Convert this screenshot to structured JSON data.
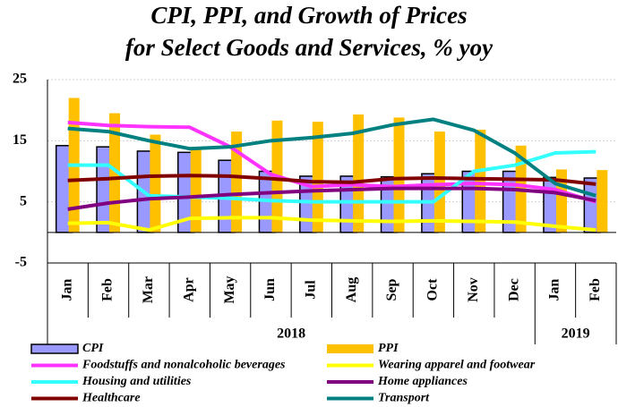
{
  "chart_data": {
    "type": "bar-line",
    "title": "CPI, PPI, and Growth of Prices",
    "subtitle": "for Select Goods and Services, % yoy",
    "categories": [
      "Jan",
      "Feb",
      "Mar",
      "Apr",
      "May",
      "Jun",
      "Jul",
      "Aug",
      "Sep",
      "Oct",
      "Nov",
      "Dec",
      "Jan",
      "Feb"
    ],
    "year_labels": [
      "2018",
      "2019"
    ],
    "ylim": [
      -5,
      25
    ],
    "yticks": [
      -5,
      5,
      15,
      25
    ],
    "grid": true,
    "series": [
      {
        "name": "CPI",
        "kind": "bar",
        "color": "#9999ff",
        "values": [
          14.2,
          14.0,
          13.3,
          13.1,
          11.8,
          10.0,
          9.2,
          9.2,
          9.1,
          9.6,
          10.0,
          10.0,
          9.0,
          8.9
        ]
      },
      {
        "name": "PPI",
        "kind": "bar",
        "color": "#ffc000",
        "values": [
          22.0,
          19.5,
          16.0,
          14.0,
          16.5,
          18.3,
          18.1,
          19.3,
          18.8,
          16.5,
          16.8,
          14.2,
          10.3,
          10.2
        ]
      },
      {
        "name": "Foodstuffs and nonalcoholic beverages",
        "kind": "line",
        "color": "#ff33ff",
        "values": [
          18.0,
          17.5,
          17.3,
          17.2,
          14.0,
          9.5,
          7.5,
          7.8,
          7.5,
          7.8,
          8.0,
          7.8,
          7.0,
          5.0
        ]
      },
      {
        "name": "Wearing apparel and footwear",
        "kind": "line",
        "color": "#ffff00",
        "values": [
          1.5,
          1.6,
          0.4,
          2.3,
          2.4,
          2.4,
          2.0,
          1.9,
          1.8,
          1.9,
          1.8,
          1.7,
          1.0,
          0.4
        ]
      },
      {
        "name": "Housing and utilities",
        "kind": "line",
        "color": "#33ffff",
        "values": [
          11.0,
          11.0,
          6.0,
          5.8,
          5.6,
          5.2,
          5.0,
          5.0,
          5.0,
          5.0,
          10.0,
          11.0,
          13.0,
          13.2
        ]
      },
      {
        "name": "Home appliances",
        "kind": "line",
        "color": "#800080",
        "values": [
          3.8,
          4.8,
          5.5,
          5.8,
          6.2,
          6.5,
          6.8,
          7.0,
          7.2,
          7.2,
          7.2,
          7.0,
          6.5,
          5.2
        ]
      },
      {
        "name": "Healthcare",
        "kind": "line",
        "color": "#800000",
        "values": [
          8.5,
          8.8,
          9.2,
          9.3,
          9.2,
          8.8,
          8.3,
          8.2,
          8.8,
          8.9,
          8.8,
          8.7,
          8.6,
          7.9
        ]
      },
      {
        "name": "Transport",
        "kind": "line",
        "color": "#008080",
        "values": [
          17.0,
          16.5,
          15.0,
          13.7,
          14.0,
          15.0,
          15.5,
          16.2,
          17.6,
          18.5,
          16.7,
          13.0,
          8.0,
          6.0
        ]
      }
    ]
  }
}
